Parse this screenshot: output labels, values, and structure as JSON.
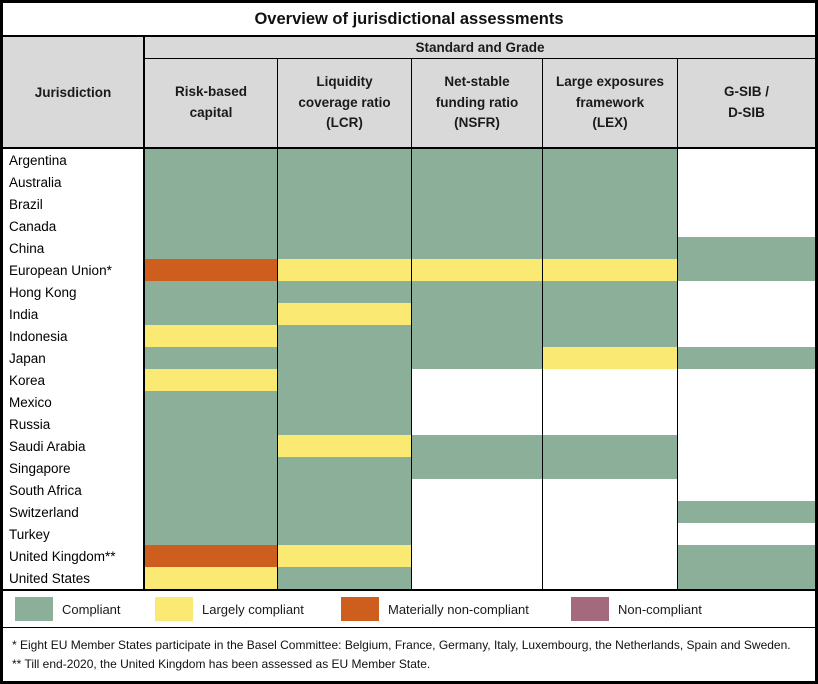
{
  "title": "Overview of jurisdictional assessments",
  "header": {
    "jurisdiction_label": "Jurisdiction",
    "group_label": "Standard and Grade",
    "columns_display": [
      "Risk-based\ncapital",
      "Liquidity\ncoverage ratio\n(LCR)",
      "Net-stable\nfunding ratio\n(NSFR)",
      "Large exposures\nframework\n(LEX)",
      "G-SIB /\nD-SIB"
    ]
  },
  "grade_colors": {
    "C": "#8BAF99",
    "LC": "#FAE973",
    "MNC": "#CE5E1D",
    "NC": "#A36A7D",
    "": "#FFFFFF"
  },
  "legend": [
    {
      "code": "C",
      "label": "Compliant"
    },
    {
      "code": "LC",
      "label": "Largely compliant"
    },
    {
      "code": "MNC",
      "label": "Materially non-compliant"
    },
    {
      "code": "NC",
      "label": "Non-compliant"
    }
  ],
  "footnotes": [
    "* Eight EU Member States participate in the Basel Committee: Belgium, France, Germany, Italy, Luxembourg, the Netherlands, Spain and Sweden.",
    "** Till end-2020, the United Kingdom has been assessed as EU Member State."
  ],
  "chart_data": {
    "type": "heatmap",
    "title": "Overview of jurisdictional assessments",
    "column_group": "Standard and Grade",
    "columns": [
      "Risk-based capital",
      "Liquidity coverage ratio (LCR)",
      "Net-stable funding ratio (NSFR)",
      "Large exposures framework (LEX)",
      "G-SIB / D-SIB"
    ],
    "grade_scale": [
      "Compliant",
      "Largely compliant",
      "Materially non-compliant",
      "Non-compliant"
    ],
    "rows": [
      {
        "jurisdiction": "Argentina",
        "grades": [
          "C",
          "C",
          "C",
          "C",
          ""
        ]
      },
      {
        "jurisdiction": "Australia",
        "grades": [
          "C",
          "C",
          "C",
          "C",
          ""
        ]
      },
      {
        "jurisdiction": "Brazil",
        "grades": [
          "C",
          "C",
          "C",
          "C",
          ""
        ]
      },
      {
        "jurisdiction": "Canada",
        "grades": [
          "C",
          "C",
          "C",
          "C",
          ""
        ]
      },
      {
        "jurisdiction": "China",
        "grades": [
          "C",
          "C",
          "C",
          "C",
          "C"
        ]
      },
      {
        "jurisdiction": "European Union*",
        "grades": [
          "MNC",
          "LC",
          "LC",
          "LC",
          "C"
        ]
      },
      {
        "jurisdiction": "Hong Kong",
        "grades": [
          "C",
          "C",
          "C",
          "C",
          ""
        ]
      },
      {
        "jurisdiction": "India",
        "grades": [
          "C",
          "LC",
          "C",
          "C",
          ""
        ]
      },
      {
        "jurisdiction": "Indonesia",
        "grades": [
          "LC",
          "C",
          "C",
          "C",
          ""
        ]
      },
      {
        "jurisdiction": "Japan",
        "grades": [
          "C",
          "C",
          "C",
          "LC",
          "C"
        ]
      },
      {
        "jurisdiction": "Korea",
        "grades": [
          "LC",
          "C",
          "",
          "",
          ""
        ]
      },
      {
        "jurisdiction": "Mexico",
        "grades": [
          "C",
          "C",
          "",
          "",
          ""
        ]
      },
      {
        "jurisdiction": "Russia",
        "grades": [
          "C",
          "C",
          "",
          "",
          ""
        ]
      },
      {
        "jurisdiction": "Saudi Arabia",
        "grades": [
          "C",
          "LC",
          "C",
          "C",
          ""
        ]
      },
      {
        "jurisdiction": "Singapore",
        "grades": [
          "C",
          "C",
          "C",
          "C",
          ""
        ]
      },
      {
        "jurisdiction": "South Africa",
        "grades": [
          "C",
          "C",
          "",
          "",
          ""
        ]
      },
      {
        "jurisdiction": "Switzerland",
        "grades": [
          "C",
          "C",
          "",
          "",
          "C"
        ]
      },
      {
        "jurisdiction": "Turkey",
        "grades": [
          "C",
          "C",
          "",
          "",
          ""
        ]
      },
      {
        "jurisdiction": "United Kingdom**",
        "grades": [
          "MNC",
          "LC",
          "",
          "",
          "C"
        ]
      },
      {
        "jurisdiction": "United States",
        "grades": [
          "LC",
          "C",
          "",
          "",
          "C"
        ]
      }
    ]
  }
}
